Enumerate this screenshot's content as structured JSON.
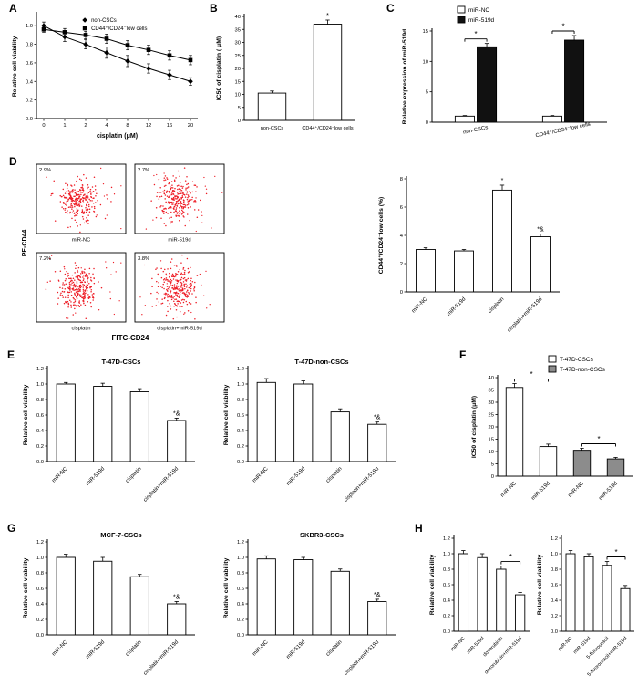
{
  "panels": {
    "A": {
      "label": "A"
    },
    "B": {
      "label": "B"
    },
    "C": {
      "label": "C"
    },
    "D": {
      "label": "D"
    },
    "E": {
      "label": "E"
    },
    "F": {
      "label": "F"
    },
    "G": {
      "label": "G"
    },
    "H": {
      "label": "H"
    }
  },
  "chart_data": [
    {
      "id": "chartA",
      "type": "line",
      "x": [
        0,
        1,
        2,
        4,
        8,
        12,
        16,
        20
      ],
      "xlabel": "cisplatin (μM)",
      "ylabel": "Relative cell viability",
      "ylim": [
        0,
        1.12
      ],
      "yticks": [
        0,
        0.2,
        0.4,
        0.6,
        0.8,
        1.0
      ],
      "legend_position": "top-inside",
      "series": [
        {
          "name": "non-CSCs",
          "marker": "diamond",
          "color": "#000000",
          "values": [
            1.0,
            0.88,
            0.8,
            0.71,
            0.62,
            0.54,
            0.47,
            0.4
          ],
          "errors": [
            0.04,
            0.05,
            0.05,
            0.06,
            0.06,
            0.05,
            0.05,
            0.04
          ]
        },
        {
          "name": "CD44⁺/CD24⁻low cells",
          "marker": "square",
          "color": "#000000",
          "values": [
            0.96,
            0.93,
            0.9,
            0.86,
            0.79,
            0.74,
            0.68,
            0.63
          ],
          "errors": [
            0.03,
            0.04,
            0.04,
            0.05,
            0.05,
            0.05,
            0.05,
            0.05
          ]
        }
      ]
    },
    {
      "id": "chartB",
      "type": "bar",
      "categories": [
        "non-CSCs",
        "CD44⁺/CD24⁻low cells"
      ],
      "values": [
        10.5,
        37.0
      ],
      "errors": [
        0.8,
        1.6
      ],
      "annotations": [
        "",
        "*"
      ],
      "bar_fill": "#ffffff",
      "ylabel": "IC50 of cisplatin ( μM)",
      "ylim": [
        0,
        40
      ],
      "yticks": [
        0,
        5,
        10,
        15,
        20,
        25,
        30,
        35,
        40
      ]
    },
    {
      "id": "chartC",
      "type": "bar",
      "categories": [
        "non-CSCs",
        "CD44⁺/CD24⁻low cells"
      ],
      "series": [
        {
          "name": "miR-NC",
          "fill": "#ffffff",
          "values": [
            1.0,
            1.0
          ],
          "errors": [
            0.1,
            0.1
          ]
        },
        {
          "name": "miR-519d",
          "fill": "#111111",
          "values": [
            12.4,
            13.5
          ],
          "errors": [
            0.55,
            0.75
          ]
        }
      ],
      "group_brackets": [
        {
          "group": 0,
          "label": "*"
        },
        {
          "group": 1,
          "label": "*"
        }
      ],
      "ylabel": "Relative expression of miR-519d",
      "ylim": [
        0,
        15
      ],
      "yticks": [
        0,
        5,
        10,
        15
      ]
    },
    {
      "id": "flowD",
      "type": "scatter-flow",
      "ylabel": "PE-CD44",
      "xlabel": "FITC-CD24",
      "dot_color": "#ee1c25",
      "plots": [
        {
          "percent": "2.9%",
          "label": "miR-NC"
        },
        {
          "percent": "2.7%",
          "label": "miR-519d"
        },
        {
          "percent": "7.2%",
          "label": "cisplatin"
        },
        {
          "percent": "3.8%",
          "label": "cisplatin+miR-519d"
        }
      ]
    },
    {
      "id": "chartD",
      "type": "bar",
      "categories": [
        "miR-NC",
        "miR-519d",
        "cisplatin",
        "cisplatin+miR-519d"
      ],
      "values": [
        3.0,
        2.9,
        7.2,
        3.9
      ],
      "errors": [
        0.12,
        0.1,
        0.35,
        0.2
      ],
      "annotations": [
        "",
        "",
        "*",
        "*&"
      ],
      "bar_fill": "#ffffff",
      "ylabel": "CD44⁺/CD24⁻low cells (%)",
      "ylim": [
        0,
        8
      ],
      "yticks": [
        0,
        2,
        4,
        6,
        8
      ]
    },
    {
      "id": "chartE1",
      "type": "bar",
      "title": "T-47D-CSCs",
      "categories": [
        "miR-NC",
        "miR-519d",
        "cisplatin",
        "cisplatin+miR-519d"
      ],
      "values": [
        1.0,
        0.97,
        0.9,
        0.53
      ],
      "errors": [
        0.02,
        0.04,
        0.04,
        0.03
      ],
      "annotations": [
        "",
        "",
        "",
        "*&"
      ],
      "bar_fill": "#ffffff",
      "ylabel": "Relative cell viability",
      "ylim": [
        0,
        1.2
      ],
      "yticks": [
        0,
        0.2,
        0.4,
        0.6,
        0.8,
        1.0,
        1.2
      ]
    },
    {
      "id": "chartE2",
      "type": "bar",
      "title": "T-47D-non-CSCs",
      "categories": [
        "miR-NC",
        "miR-519d",
        "cisplatin",
        "cisplatin+miR-519d"
      ],
      "values": [
        1.02,
        1.0,
        0.64,
        0.48
      ],
      "errors": [
        0.05,
        0.04,
        0.04,
        0.03
      ],
      "annotations": [
        "",
        "",
        "",
        "*&"
      ],
      "bar_fill": "#ffffff",
      "ylabel": "Relative cell viability",
      "ylim": [
        0,
        1.2
      ],
      "yticks": [
        0,
        0.2,
        0.4,
        0.6,
        0.8,
        1.0,
        1.2
      ]
    },
    {
      "id": "chartF",
      "type": "bar",
      "categories": [
        "miR-NC",
        "miR-519d",
        "miR-NC",
        "miR-519d"
      ],
      "values": [
        36.0,
        12.0,
        10.5,
        7.0
      ],
      "errors": [
        1.6,
        1.0,
        0.8,
        0.6
      ],
      "fills": [
        "#ffffff",
        "#ffffff",
        "#8c8c8c",
        "#8c8c8c"
      ],
      "legend": [
        {
          "label": "T-47D-CSCs",
          "fill": "#ffffff"
        },
        {
          "label": "T-47D-non-CSCs",
          "fill": "#8c8c8c"
        }
      ],
      "brackets": [
        {
          "from": 0,
          "to": 1,
          "label": "*"
        },
        {
          "from": 2,
          "to": 3,
          "label": "*"
        }
      ],
      "ylabel": "IC50 of cisplatin (μM)",
      "ylim": [
        0,
        40
      ],
      "yticks": [
        0,
        5,
        10,
        15,
        20,
        25,
        30,
        35,
        40
      ]
    },
    {
      "id": "chartG1",
      "type": "bar",
      "title": "MCF-7-CSCs",
      "categories": [
        "miR-NC",
        "miR-519d",
        "cisplatin",
        "cisplatin+miR-519d"
      ],
      "values": [
        1.0,
        0.95,
        0.75,
        0.4
      ],
      "errors": [
        0.04,
        0.05,
        0.03,
        0.03
      ],
      "annotations": [
        "",
        "",
        "",
        "*&"
      ],
      "bar_fill": "#ffffff",
      "ylabel": "Relative cell viability",
      "ylim": [
        0,
        1.2
      ],
      "yticks": [
        0,
        0.2,
        0.4,
        0.6,
        0.8,
        1.0,
        1.2
      ]
    },
    {
      "id": "chartG2",
      "type": "bar",
      "title": "SKBR3-CSCs",
      "categories": [
        "miR-NC",
        "miR-519d",
        "cisplatin",
        "cisplatin+miR-519d"
      ],
      "values": [
        0.98,
        0.97,
        0.82,
        0.43
      ],
      "errors": [
        0.04,
        0.03,
        0.03,
        0.03
      ],
      "annotations": [
        "",
        "",
        "",
        "*&"
      ],
      "bar_fill": "#ffffff",
      "ylabel": "Relative cell viability",
      "ylim": [
        0,
        1.2
      ],
      "yticks": [
        0,
        0.2,
        0.4,
        0.6,
        0.8,
        1.0,
        1.2
      ]
    },
    {
      "id": "chartH1",
      "type": "bar",
      "categories": [
        "miR-NC",
        "miR-519d",
        "doxorubicin",
        "doxorubicin+miR-519d"
      ],
      "values": [
        1.0,
        0.95,
        0.8,
        0.47
      ],
      "errors": [
        0.04,
        0.05,
        0.04,
        0.03
      ],
      "brackets": [
        {
          "from": 2,
          "to": 3,
          "label": "*"
        }
      ],
      "bar_fill": "#ffffff",
      "ylabel": "Relative cell viability",
      "ylim": [
        0,
        1.2
      ],
      "yticks": [
        0,
        0.2,
        0.4,
        0.6,
        0.8,
        1.0,
        1.2
      ]
    },
    {
      "id": "chartH2",
      "type": "bar",
      "categories": [
        "miR-NC",
        "miR-519d",
        "5-fluorouracil",
        "5-fluorouracil+miR-519d"
      ],
      "values": [
        1.0,
        0.96,
        0.85,
        0.55
      ],
      "errors": [
        0.04,
        0.04,
        0.05,
        0.04
      ],
      "brackets": [
        {
          "from": 2,
          "to": 3,
          "label": "*"
        }
      ],
      "bar_fill": "#ffffff",
      "ylabel": "Relative cell viability",
      "ylim": [
        0,
        1.2
      ],
      "yticks": [
        0,
        0.2,
        0.4,
        0.6,
        0.8,
        1.0,
        1.2
      ]
    }
  ]
}
